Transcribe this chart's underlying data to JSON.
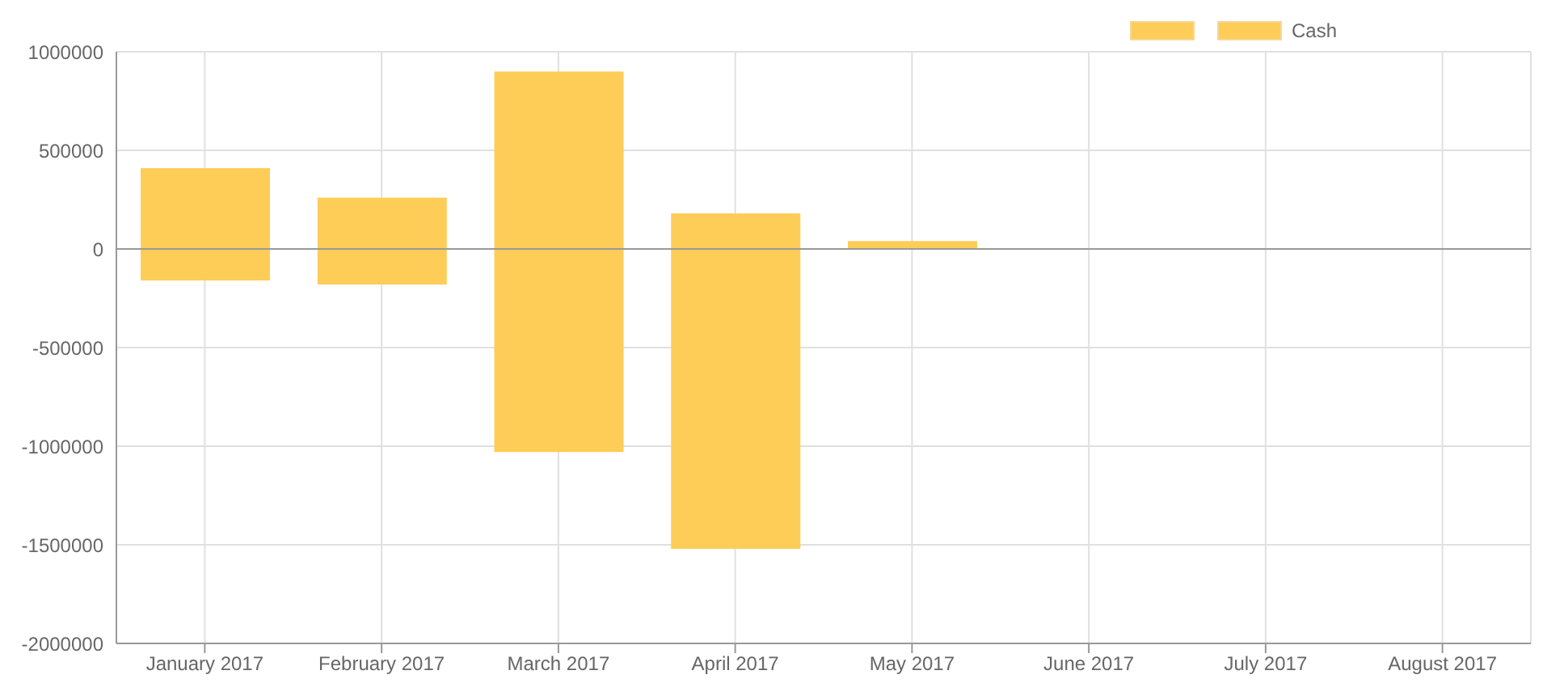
{
  "chart_data": {
    "type": "bar",
    "stacked": true,
    "categories": [
      "January 2017",
      "February 2017",
      "March 2017",
      "April 2017",
      "May 2017",
      "June 2017",
      "July 2017",
      "August 2017"
    ],
    "series": [
      {
        "color": "#fecd57",
        "values": [
          410000,
          260000,
          900000,
          180000,
          40000,
          0,
          0,
          0
        ]
      },
      {
        "name": "Cash",
        "color": "#fecd57",
        "values": [
          -160000,
          -180000,
          -1030000,
          -1520000,
          0,
          0,
          0,
          0
        ]
      }
    ],
    "ylim": [
      -2000000,
      1000000
    ],
    "yticks": [
      -2000000,
      -1500000,
      -1000000,
      -500000,
      0,
      500000,
      1000000
    ],
    "grid": true,
    "legend": "top"
  }
}
